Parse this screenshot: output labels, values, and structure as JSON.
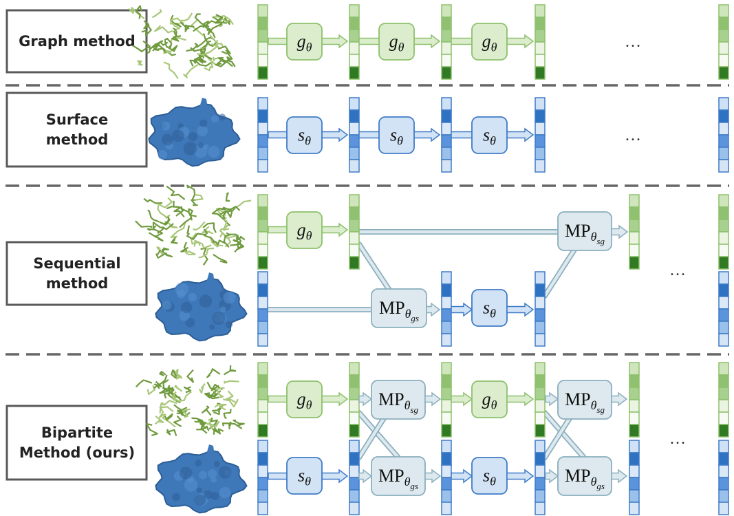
{
  "rows": [
    {
      "label": [
        "Graph method"
      ]
    },
    {
      "label": [
        "Surface",
        "method"
      ]
    },
    {
      "label": [
        "Sequential",
        "method"
      ]
    },
    {
      "label": [
        "Bipartite",
        "Method (ours)"
      ]
    }
  ],
  "operators": {
    "g": {
      "base": "g",
      "sub": "θ"
    },
    "s": {
      "base": "s",
      "sub": "θ"
    },
    "mp_sg": {
      "base": "MP",
      "sub": "θ",
      "subsub": "sg"
    },
    "mp_gs": {
      "base": "MP",
      "sub": "θ",
      "subsub": "gs"
    }
  },
  "ellipsis": "…"
}
